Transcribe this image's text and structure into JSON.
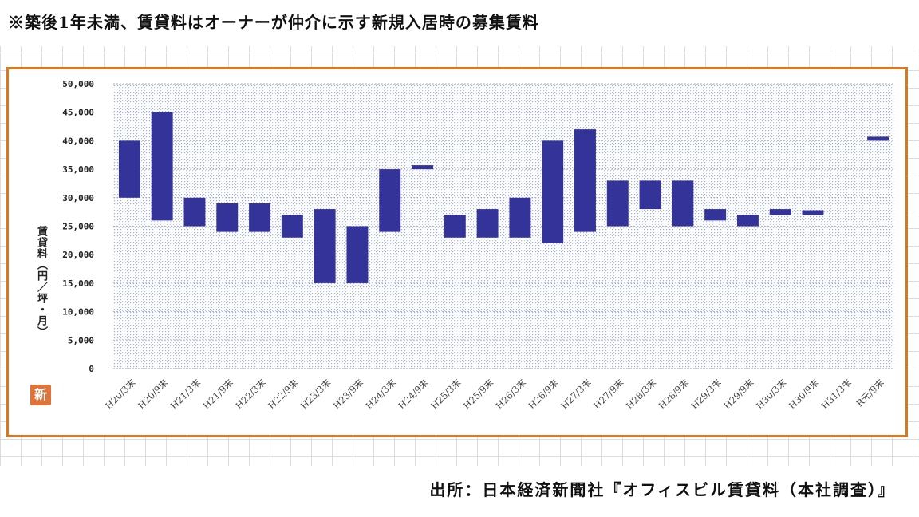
{
  "header": {
    "note": "※築後1年未満、賃貸料はオーナーが仲介に示す新規入居時の募集賃料"
  },
  "footer": {
    "source": "出所：日本経済新聞社『オフィスビル賃貸料（本社調査）』"
  },
  "logo": {
    "text": "新"
  },
  "colors": {
    "bar": "#333399",
    "frame": "#d9781f",
    "plot_dots": "#9fa8d8"
  },
  "chart_data": {
    "type": "bar",
    "subtype": "floating-range",
    "ylabel": "賃貸料（円／坪・月）",
    "ylim": [
      0,
      50000
    ],
    "yticks": [
      "0",
      "5,000",
      "10,000",
      "15,000",
      "20,000",
      "25,000",
      "30,000",
      "35,000",
      "40,000",
      "45,000",
      "50,000"
    ],
    "grid": true,
    "categories": [
      "H20/3末",
      "H20/9末",
      "H21/3末",
      "H21/9末",
      "H22/3末",
      "H22/9末",
      "H23/3末",
      "H23/9末",
      "H24/3末",
      "H24/9末",
      "H25/3末",
      "H25/9末",
      "H26/3末",
      "H26/9末",
      "H27/3末",
      "H27/9末",
      "H28/3末",
      "H28/9末",
      "H29/3末",
      "H29/9末",
      "H30/3末",
      "H30/9末",
      "H31/3末",
      "R元/9末"
    ],
    "ranges": [
      [
        30000,
        40000
      ],
      [
        26000,
        45000
      ],
      [
        25000,
        30000
      ],
      [
        24000,
        29000
      ],
      [
        24000,
        29000
      ],
      [
        23000,
        27000
      ],
      [
        15000,
        28000
      ],
      [
        15000,
        25000
      ],
      [
        24000,
        35000
      ],
      [
        35000,
        35700
      ],
      [
        23000,
        27000
      ],
      [
        23000,
        28000
      ],
      [
        23000,
        30000
      ],
      [
        22000,
        40000
      ],
      [
        24000,
        42000
      ],
      [
        25000,
        33000
      ],
      [
        28000,
        33000
      ],
      [
        25000,
        33000
      ],
      [
        26000,
        28000
      ],
      [
        25000,
        27000
      ],
      [
        27000,
        28000
      ],
      [
        27000,
        27800
      ],
      null,
      [
        40000,
        40700
      ]
    ]
  }
}
